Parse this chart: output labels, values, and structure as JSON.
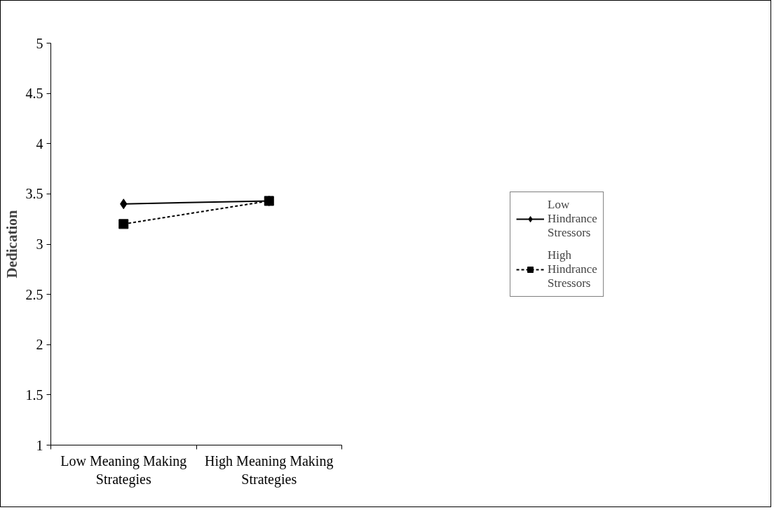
{
  "chart_data": {
    "type": "line",
    "ylabel": "Dedication",
    "categories": [
      "Low Meaning Making Strategies",
      "High Meaning Making Strategies"
    ],
    "series": [
      {
        "name": "Low Hindrance Stressors",
        "color": "#000000",
        "values": [
          3.4,
          3.43
        ],
        "marker": "diamond",
        "line_style": "solid"
      },
      {
        "name": "High Hindrance Stressors",
        "color": "#000000",
        "values": [
          3.2,
          3.43
        ],
        "marker": "square",
        "line_style": "dashed"
      }
    ],
    "ylim": [
      1,
      5
    ],
    "yticks": [
      1,
      1.5,
      2,
      2.5,
      3,
      3.5,
      4,
      4.5,
      5
    ],
    "grid": false,
    "legend": "right"
  }
}
